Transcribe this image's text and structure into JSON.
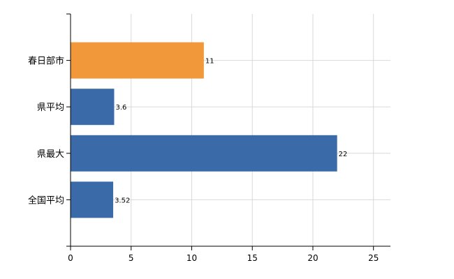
{
  "chart_data": {
    "type": "bar",
    "orientation": "horizontal",
    "title": "",
    "xlabel": "",
    "ylabel": "",
    "categories": [
      "春日部市",
      "県平均",
      "県最大",
      "全国平均"
    ],
    "values": [
      11,
      3.6,
      22,
      3.52
    ],
    "data_labels": [
      "11",
      "3.6",
      "22",
      "3.52"
    ],
    "bar_colors": [
      "#f0983a",
      "#3b6aa8",
      "#3b6aa8",
      "#3b6aa8"
    ],
    "xlim": [
      0,
      26.4
    ],
    "xticks": [
      0,
      5,
      10,
      15,
      20,
      25
    ],
    "grid": true,
    "legend": "none"
  }
}
